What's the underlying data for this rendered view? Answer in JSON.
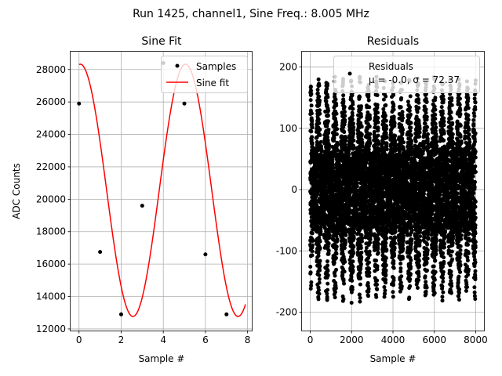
{
  "suptitle": "Run 1425, channel1, Sine Freq.: 8.005 MHz",
  "chart_data": [
    {
      "type": "scatter+line",
      "title": "Sine Fit",
      "xlabel": "Sample #",
      "ylabel": "ADC Counts",
      "xlim": [
        -0.4,
        8.2
      ],
      "ylim": [
        11900,
        29100
      ],
      "xticks": [
        0,
        2,
        4,
        6,
        8
      ],
      "yticks": [
        12000,
        14000,
        16000,
        18000,
        20000,
        22000,
        24000,
        26000,
        28000
      ],
      "grid": true,
      "legend": {
        "placement": "top-right",
        "entries": [
          "Samples",
          "Sine fit"
        ]
      },
      "samples": {
        "name": "Samples",
        "color": "#000000",
        "x": [
          0,
          1,
          2,
          3,
          4,
          5,
          6,
          7
        ],
        "y": [
          25900,
          16750,
          12900,
          19600,
          28400,
          25900,
          16600,
          12900
        ]
      },
      "fit": {
        "name": "Sine fit",
        "color": "#ff0000",
        "offset": 20550,
        "amplitude": 7780,
        "cycles_per_sample": 0.2004,
        "phase_rad": 1.49,
        "x_range": [
          0,
          7.9
        ]
      }
    },
    {
      "type": "scatter",
      "title": "Residuals",
      "xlabel": "Sample #",
      "xlim": [
        -400,
        8400
      ],
      "ylim": [
        -230,
        225
      ],
      "xticks": [
        0,
        2000,
        4000,
        6000,
        8000
      ],
      "yticks": [
        -200,
        -100,
        0,
        100,
        200
      ],
      "grid": true,
      "legend": {
        "placement": "top-right",
        "entries": [
          "Residuals",
          "$\\mu$ = -0.0, $\\sigma$ = 72.37"
        ]
      },
      "series": {
        "name": "Residuals",
        "color": "#000000"
      },
      "stats": {
        "n_samples": 8000,
        "mean": -0.0,
        "sigma": 72.37,
        "period_samples": 4.99,
        "min": -212,
        "max": 205
      }
    }
  ]
}
